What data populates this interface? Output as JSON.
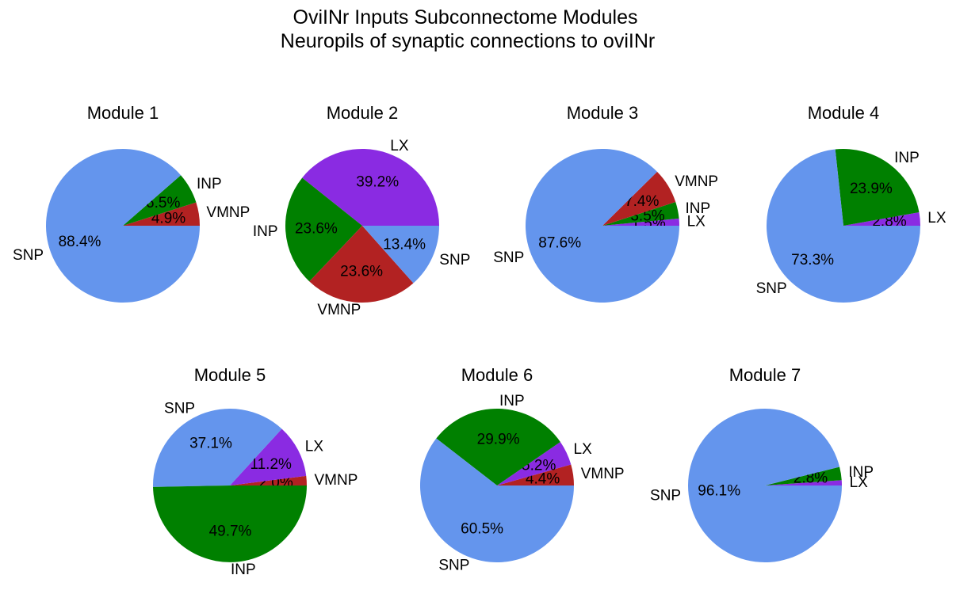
{
  "figure": {
    "title_line1": "OviINr Inputs Subconnectome Modules",
    "title_line2": "Neuropils of synaptic connections to oviINr"
  },
  "colors": {
    "SNP": "#6495ed",
    "VMNP": "#b22222",
    "INP": "#008000",
    "LX": "#8a2be2"
  },
  "chart_data": [
    {
      "type": "pie",
      "title": "Module 1",
      "slices": [
        {
          "label": "VMNP",
          "value": 4.9,
          "pct_text": "4.9%"
        },
        {
          "label": "INP",
          "value": 6.5,
          "pct_text": "6.5%"
        },
        {
          "label": "SNP",
          "value": 88.4,
          "pct_text": "88.4%"
        }
      ]
    },
    {
      "type": "pie",
      "title": "Module 2",
      "slices": [
        {
          "label": "LX",
          "value": 39.2,
          "pct_text": "39.2%"
        },
        {
          "label": "INP",
          "value": 23.6,
          "pct_text": "23.6%"
        },
        {
          "label": "VMNP",
          "value": 23.6,
          "pct_text": "23.6%"
        },
        {
          "label": "SNP",
          "value": 13.4,
          "pct_text": "13.4%"
        }
      ]
    },
    {
      "type": "pie",
      "title": "Module 3",
      "slices": [
        {
          "label": "LX",
          "value": 1.5,
          "pct_text": "1.5%"
        },
        {
          "label": "INP",
          "value": 3.5,
          "pct_text": "3.5%"
        },
        {
          "label": "VMNP",
          "value": 7.4,
          "pct_text": "7.4%"
        },
        {
          "label": "SNP",
          "value": 87.6,
          "pct_text": "87.6%"
        }
      ]
    },
    {
      "type": "pie",
      "title": "Module 4",
      "slices": [
        {
          "label": "LX",
          "value": 2.8,
          "pct_text": "2.8%"
        },
        {
          "label": "INP",
          "value": 23.9,
          "pct_text": "23.9%"
        },
        {
          "label": "SNP",
          "value": 73.3,
          "pct_text": "73.3%"
        }
      ]
    },
    {
      "type": "pie",
      "title": "Module 5",
      "slices": [
        {
          "label": "VMNP",
          "value": 2.0,
          "pct_text": "2.0%"
        },
        {
          "label": "LX",
          "value": 11.2,
          "pct_text": "11.2%"
        },
        {
          "label": "SNP",
          "value": 37.1,
          "pct_text": "37.1%"
        },
        {
          "label": "INP",
          "value": 49.7,
          "pct_text": "49.7%"
        }
      ]
    },
    {
      "type": "pie",
      "title": "Module 6",
      "slices": [
        {
          "label": "VMNP",
          "value": 4.4,
          "pct_text": "4.4%"
        },
        {
          "label": "LX",
          "value": 5.2,
          "pct_text": "5.2%"
        },
        {
          "label": "INP",
          "value": 29.9,
          "pct_text": "29.9%"
        },
        {
          "label": "SNP",
          "value": 60.5,
          "pct_text": "60.5%"
        }
      ]
    },
    {
      "type": "pie",
      "title": "Module 7",
      "slices": [
        {
          "label": "LX",
          "value": 1.1,
          "pct_text": ""
        },
        {
          "label": "INP",
          "value": 2.8,
          "pct_text": "2.8%"
        },
        {
          "label": "SNP",
          "value": 96.1,
          "pct_text": "96.1%"
        }
      ]
    }
  ]
}
